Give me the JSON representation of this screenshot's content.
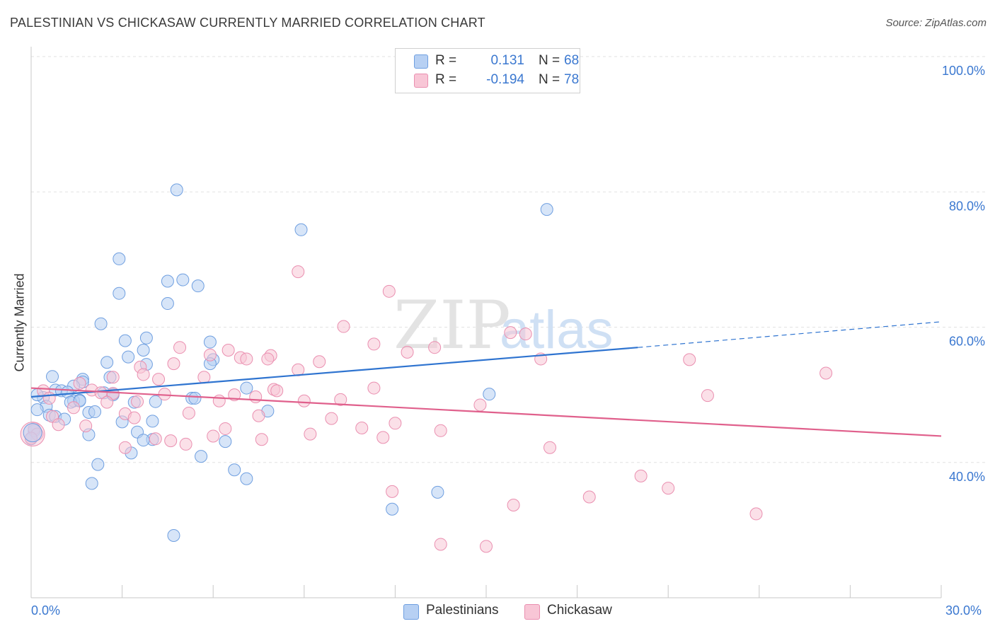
{
  "title": "PALESTINIAN VS CHICKASAW CURRENTLY MARRIED CORRELATION CHART",
  "source": "Source: ZipAtlas.com",
  "watermark": {
    "part1": "ZIP",
    "part2": "atlas"
  },
  "legend": {
    "rows": [
      {
        "r_label": "R =",
        "r_value": "0.131",
        "n_label": "N =",
        "n_value": "68",
        "fill": "#b7d0f3",
        "stroke": "#6f9fe0"
      },
      {
        "r_label": "R =",
        "r_value": "-0.194",
        "n_label": "N =",
        "n_value": "78",
        "fill": "#f8c6d6",
        "stroke": "#ea8fb0"
      }
    ]
  },
  "bottom_legend": {
    "palestinians": "Palestinians",
    "chickasaw": "Chickasaw"
  },
  "x_axis": {
    "min_label": "0.0%",
    "max_label": "30.0%"
  },
  "chart_data": {
    "type": "scatter",
    "title": "PALESTINIAN VS CHICKASAW CURRENTLY MARRIED CORRELATION CHART",
    "xlabel": "",
    "ylabel": "Currently Married",
    "xlim": [
      0,
      30
    ],
    "ylim": [
      20,
      100
    ],
    "y_ticks": [
      {
        "value": 100,
        "label": "100.0%"
      },
      {
        "value": 80,
        "label": "80.0%"
      },
      {
        "value": 60,
        "label": "60.0%"
      },
      {
        "value": 40,
        "label": "40.0%"
      }
    ],
    "x_tick_count": 10,
    "grid": "horizontal dashed",
    "legend_position": "top-center",
    "series": [
      {
        "name": "Palestinians",
        "color": "#6f9fe0",
        "fill": "#b7d0f3",
        "trend": {
          "x": [
            0.0,
            20.0
          ],
          "y": [
            49.7,
            57.0
          ],
          "dashed_extension": {
            "x": [
              20.0,
              30.0
            ],
            "y": [
              57.0,
              60.8
            ]
          },
          "color": "#2f74d0"
        },
        "points": [
          [
            4.8,
            80.3
          ],
          [
            17.0,
            77.4
          ],
          [
            8.9,
            74.4
          ],
          [
            2.9,
            70.1
          ],
          [
            4.5,
            66.8
          ],
          [
            5.0,
            67.0
          ],
          [
            5.5,
            66.1
          ],
          [
            2.9,
            65.0
          ],
          [
            4.5,
            63.5
          ],
          [
            2.3,
            60.5
          ],
          [
            3.1,
            58.0
          ],
          [
            3.8,
            58.4
          ],
          [
            5.9,
            57.8
          ],
          [
            3.7,
            56.6
          ],
          [
            3.2,
            55.6
          ],
          [
            6.0,
            55.2
          ],
          [
            2.5,
            54.8
          ],
          [
            3.8,
            54.5
          ],
          [
            5.9,
            54.6
          ],
          [
            0.7,
            52.7
          ],
          [
            1.7,
            52.3
          ],
          [
            2.6,
            52.6
          ],
          [
            1.7,
            51.9
          ],
          [
            1.4,
            51.3
          ],
          [
            7.1,
            51.0
          ],
          [
            0.8,
            50.7
          ],
          [
            1.0,
            50.6
          ],
          [
            1.2,
            50.4
          ],
          [
            2.4,
            50.3
          ],
          [
            2.7,
            50.2
          ],
          [
            2.7,
            50.0
          ],
          [
            0.4,
            49.6
          ],
          [
            1.4,
            49.1
          ],
          [
            1.6,
            49.2
          ],
          [
            5.3,
            49.5
          ],
          [
            5.4,
            49.5
          ],
          [
            3.4,
            48.9
          ],
          [
            15.1,
            50.1
          ],
          [
            1.3,
            48.9
          ],
          [
            1.6,
            49.1
          ],
          [
            0.5,
            48.3
          ],
          [
            0.2,
            47.8
          ],
          [
            1.9,
            47.4
          ],
          [
            2.1,
            47.5
          ],
          [
            0.6,
            47.0
          ],
          [
            7.8,
            47.6
          ],
          [
            0.8,
            46.8
          ],
          [
            1.1,
            46.4
          ],
          [
            3.0,
            46.0
          ],
          [
            4.0,
            46.1
          ],
          [
            3.5,
            44.5
          ],
          [
            1.9,
            44.1
          ],
          [
            4.0,
            43.4
          ],
          [
            3.7,
            43.3
          ],
          [
            6.4,
            43.1
          ],
          [
            3.3,
            41.4
          ],
          [
            5.6,
            40.9
          ],
          [
            2.2,
            39.7
          ],
          [
            6.7,
            38.9
          ],
          [
            7.1,
            37.6
          ],
          [
            2.0,
            36.9
          ],
          [
            13.4,
            35.6
          ],
          [
            11.9,
            33.1
          ],
          [
            4.7,
            29.2
          ],
          [
            0.1,
            44.7
          ],
          [
            0.0,
            43.5
          ],
          [
            0.2,
            50.0
          ],
          [
            4.1,
            49.0
          ]
        ]
      },
      {
        "name": "Chickasaw",
        "color": "#ea8fb0",
        "fill": "#f8c6d6",
        "trend": {
          "x": [
            0.0,
            30.0
          ],
          "y": [
            51.0,
            43.9
          ],
          "color": "#e0608c"
        },
        "points": [
          [
            8.8,
            68.2
          ],
          [
            11.8,
            65.3
          ],
          [
            10.3,
            60.1
          ],
          [
            15.8,
            59.2
          ],
          [
            16.3,
            59.0
          ],
          [
            11.3,
            57.5
          ],
          [
            4.9,
            57.0
          ],
          [
            13.3,
            57.0
          ],
          [
            6.5,
            56.6
          ],
          [
            12.4,
            56.3
          ],
          [
            5.9,
            55.9
          ],
          [
            7.9,
            55.8
          ],
          [
            6.9,
            55.5
          ],
          [
            7.1,
            55.3
          ],
          [
            7.8,
            55.3
          ],
          [
            16.8,
            55.3
          ],
          [
            21.7,
            55.2
          ],
          [
            9.5,
            54.9
          ],
          [
            4.7,
            54.6
          ],
          [
            3.6,
            54.1
          ],
          [
            8.8,
            53.7
          ],
          [
            26.2,
            53.2
          ],
          [
            3.7,
            53.0
          ],
          [
            2.7,
            52.6
          ],
          [
            5.7,
            52.6
          ],
          [
            4.2,
            52.3
          ],
          [
            11.3,
            51.0
          ],
          [
            1.6,
            51.7
          ],
          [
            2.0,
            50.7
          ],
          [
            0.4,
            50.6
          ],
          [
            2.3,
            50.3
          ],
          [
            8.0,
            50.8
          ],
          [
            8.1,
            50.6
          ],
          [
            2.7,
            50.2
          ],
          [
            4.4,
            50.1
          ],
          [
            6.7,
            50.0
          ],
          [
            7.4,
            49.7
          ],
          [
            0.6,
            49.5
          ],
          [
            22.3,
            49.9
          ],
          [
            3.5,
            49.0
          ],
          [
            10.2,
            49.3
          ],
          [
            2.5,
            48.9
          ],
          [
            9.0,
            49.1
          ],
          [
            6.2,
            49.1
          ],
          [
            14.8,
            48.5
          ],
          [
            1.4,
            48.1
          ],
          [
            3.1,
            47.2
          ],
          [
            5.2,
            47.3
          ],
          [
            7.5,
            46.9
          ],
          [
            0.7,
            46.8
          ],
          [
            3.4,
            46.6
          ],
          [
            9.9,
            46.5
          ],
          [
            0.9,
            45.6
          ],
          [
            1.8,
            45.4
          ],
          [
            12.0,
            45.8
          ],
          [
            6.4,
            45.0
          ],
          [
            10.9,
            45.1
          ],
          [
            13.5,
            44.7
          ],
          [
            9.2,
            44.2
          ],
          [
            6.0,
            43.9
          ],
          [
            11.6,
            43.7
          ],
          [
            7.6,
            43.4
          ],
          [
            4.6,
            43.2
          ],
          [
            5.1,
            42.7
          ],
          [
            3.1,
            42.2
          ],
          [
            17.1,
            42.2
          ],
          [
            20.1,
            38.0
          ],
          [
            21.0,
            36.2
          ],
          [
            11.9,
            35.7
          ],
          [
            18.4,
            34.9
          ],
          [
            15.9,
            33.7
          ],
          [
            23.9,
            32.4
          ],
          [
            13.5,
            27.9
          ],
          [
            15.0,
            27.6
          ],
          [
            0.1,
            45.0
          ],
          [
            0.2,
            44.2
          ],
          [
            0.0,
            43.6
          ],
          [
            4.1,
            43.5
          ]
        ]
      }
    ]
  }
}
